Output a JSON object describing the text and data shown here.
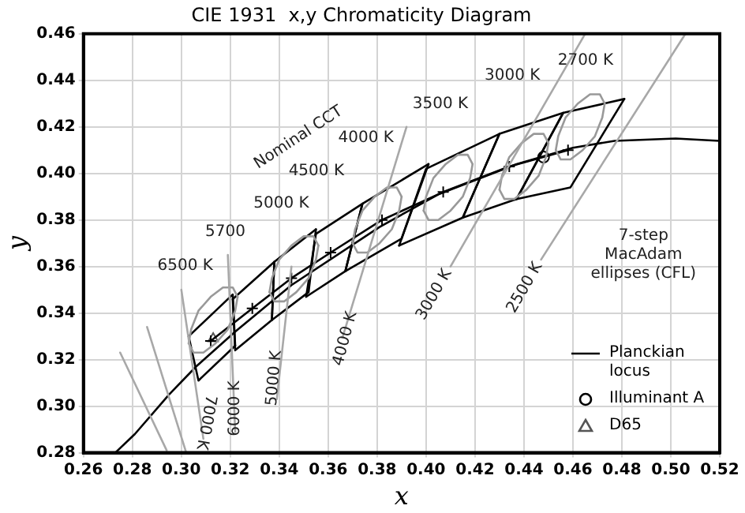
{
  "chart_data": {
    "type": "line",
    "title": "CIE 1931  x,y Chromaticity Diagram",
    "xlabel": "x",
    "ylabel": "y",
    "xlim": [
      0.26,
      0.52
    ],
    "ylim": [
      0.28,
      0.46
    ],
    "xticks": [
      0.26,
      0.28,
      {
        "value": 0.3,
        "label": "0.30"
      },
      0.32,
      0.34,
      0.36,
      0.38,
      {
        "value": 0.4,
        "label": "0.40"
      },
      0.42,
      0.44,
      0.46,
      0.48,
      {
        "value": 0.5,
        "label": "0.50"
      },
      0.52
    ],
    "yticks": [
      0.28,
      {
        "value": 0.3,
        "label": "0.30"
      },
      0.32,
      0.34,
      0.36,
      0.38,
      {
        "value": 0.4,
        "label": "0.40"
      },
      0.42,
      0.44,
      0.46
    ],
    "grid": true,
    "legend": "bottom right",
    "line_style": "solid",
    "series": [
      {
        "color": "#a8a8a8",
        "x": [
          0.275,
          0.294
        ],
        "values": [
          0.323,
          0.281
        ]
      },
      {
        "color": "#a8a8a8",
        "x": [
          0.286,
          0.302
        ],
        "values": [
          0.334,
          0.28
        ]
      },
      {
        "color": "#a8a8a8",
        "x": [
          0.3,
          0.309
        ],
        "values": [
          0.35,
          0.286
        ]
      },
      {
        "color": "#a8a8a8",
        "x": [
          0.319,
          0.322
        ],
        "values": [
          0.365,
          0.289
        ]
      },
      {
        "color": "#a8a8a8",
        "x": [
          0.339,
          0.345
        ],
        "values": [
          0.303,
          0.36
        ]
      },
      {
        "color": "#a8a8a8",
        "x": [
          0.366,
          0.392
        ],
        "values": [
          0.33,
          0.42
        ]
      },
      {
        "color": "#a8a8a8",
        "x": [
          0.41,
          0.465
        ],
        "values": [
          0.36,
          0.46
        ]
      },
      {
        "color": "#a8a8a8",
        "x": [
          0.447,
          0.506
        ],
        "values": [
          0.363,
          0.46
        ]
      },
      {
        "color": "#999999",
        "x": [
          0.303,
          0.304,
          0.307,
          0.312,
          0.317,
          0.321,
          0.323
        ],
        "values": [
          0.327,
          0.333,
          0.341,
          0.347,
          0.351,
          0.351,
          0.347
        ]
      },
      {
        "color": "#999999",
        "x": [
          0.303,
          0.305,
          0.309,
          0.314,
          0.319,
          0.322,
          0.323
        ],
        "values": [
          0.327,
          0.323,
          0.323,
          0.327,
          0.333,
          0.341,
          0.347
        ]
      },
      {
        "color": "#999999",
        "x": [
          0.336,
          0.337,
          0.34,
          0.345,
          0.35,
          0.354,
          0.356
        ],
        "values": [
          0.349,
          0.355,
          0.363,
          0.369,
          0.373,
          0.373,
          0.369
        ]
      },
      {
        "color": "#999999",
        "x": [
          0.336,
          0.338,
          0.342,
          0.347,
          0.352,
          0.355,
          0.356
        ],
        "values": [
          0.349,
          0.345,
          0.345,
          0.349,
          0.355,
          0.363,
          0.369
        ]
      },
      {
        "color": "#999999",
        "x": [
          0.37,
          0.371,
          0.374,
          0.379,
          0.384,
          0.388,
          0.39
        ],
        "values": [
          0.37,
          0.376,
          0.384,
          0.39,
          0.394,
          0.394,
          0.39
        ]
      },
      {
        "color": "#999999",
        "x": [
          0.37,
          0.372,
          0.376,
          0.381,
          0.386,
          0.389,
          0.39
        ],
        "values": [
          0.37,
          0.366,
          0.366,
          0.37,
          0.376,
          0.384,
          0.39
        ]
      },
      {
        "color": "#999999",
        "x": [
          0.399,
          0.4,
          0.403,
          0.408,
          0.413,
          0.417,
          0.419
        ],
        "values": [
          0.384,
          0.39,
          0.398,
          0.404,
          0.408,
          0.408,
          0.404
        ]
      },
      {
        "color": "#999999",
        "x": [
          0.399,
          0.401,
          0.405,
          0.41,
          0.415,
          0.418,
          0.419
        ],
        "values": [
          0.384,
          0.38,
          0.38,
          0.384,
          0.39,
          0.398,
          0.404
        ]
      },
      {
        "color": "#999999",
        "x": [
          0.43,
          0.431,
          0.434,
          0.439,
          0.444,
          0.448,
          0.45
        ],
        "values": [
          0.393,
          0.399,
          0.407,
          0.413,
          0.417,
          0.417,
          0.413
        ]
      },
      {
        "color": "#999999",
        "x": [
          0.43,
          0.432,
          0.436,
          0.441,
          0.446,
          0.449,
          0.45
        ],
        "values": [
          0.393,
          0.389,
          0.389,
          0.393,
          0.399,
          0.407,
          0.413
        ]
      },
      {
        "color": "#999999",
        "x": [
          0.453,
          0.454,
          0.457,
          0.462,
          0.467,
          0.471,
          0.473
        ],
        "values": [
          0.41,
          0.416,
          0.424,
          0.43,
          0.434,
          0.434,
          0.43
        ]
      },
      {
        "color": "#999999",
        "x": [
          0.453,
          0.455,
          0.459,
          0.464,
          0.469,
          0.472,
          0.473
        ],
        "values": [
          0.41,
          0.406,
          0.406,
          0.41,
          0.416,
          0.424,
          0.43
        ]
      },
      {
        "name": "Planckian locus",
        "color": "#000000",
        "x": [
          0.273,
          0.281,
          0.295,
          0.306,
          0.322,
          0.345,
          0.381,
          0.405,
          0.437,
          0.46,
          0.477,
          0.502,
          0.52
        ],
        "values": [
          0.28,
          0.288,
          0.305,
          0.317,
          0.332,
          0.352,
          0.377,
          0.391,
          0.404,
          0.411,
          0.414,
          0.415,
          0.414
        ]
      },
      {
        "color": "#000000",
        "x": [
          0.437,
          0.456,
          0.481
        ],
        "values": [
          0.389,
          0.426,
          0.432
        ]
      },
      {
        "color": "#000000",
        "x": [
          0.437,
          0.459,
          0.481
        ],
        "values": [
          0.389,
          0.394,
          0.432
        ]
      },
      {
        "color": "#000000",
        "x": [
          0.415,
          0.43,
          0.456
        ],
        "values": [
          0.381,
          0.417,
          0.426
        ]
      },
      {
        "color": "#000000",
        "x": [
          0.415,
          0.437,
          0.456
        ],
        "values": [
          0.381,
          0.389,
          0.426
        ]
      },
      {
        "color": "#000000",
        "x": [
          0.389,
          0.4,
          0.43
        ],
        "values": [
          0.369,
          0.402,
          0.417
        ]
      },
      {
        "color": "#000000",
        "x": [
          0.389,
          0.415,
          0.43
        ],
        "values": [
          0.369,
          0.381,
          0.417
        ]
      },
      {
        "color": "#000000",
        "x": [
          0.367,
          0.374,
          0.401
        ],
        "values": [
          0.358,
          0.387,
          0.404
        ]
      },
      {
        "color": "#000000",
        "x": [
          0.367,
          0.39,
          0.401
        ],
        "values": [
          0.358,
          0.372,
          0.404
        ]
      },
      {
        "color": "#000000",
        "x": [
          0.351,
          0.355,
          0.374
        ],
        "values": [
          0.347,
          0.374,
          0.387
        ]
      },
      {
        "color": "#000000",
        "x": [
          0.351,
          0.367,
          0.374
        ],
        "values": [
          0.347,
          0.358,
          0.387
        ]
      },
      {
        "color": "#000000",
        "x": [
          0.337,
          0.338,
          0.355
        ],
        "values": [
          0.337,
          0.362,
          0.376
        ]
      },
      {
        "color": "#000000",
        "x": [
          0.337,
          0.352,
          0.355
        ],
        "values": [
          0.337,
          0.349,
          0.376
        ]
      },
      {
        "color": "#000000",
        "x": [
          0.321,
          0.338
        ],
        "values": [
          0.346,
          0.362
        ]
      },
      {
        "color": "#000000",
        "x": [
          0.321,
          0.322,
          0.337,
          0.338
        ],
        "values": [
          0.346,
          0.324,
          0.337,
          0.362
        ]
      },
      {
        "color": "#000000",
        "x": [
          0.303,
          0.321,
          0.322
        ],
        "values": [
          0.33,
          0.348,
          0.326
        ]
      },
      {
        "color": "#000000",
        "x": [
          0.303,
          0.307,
          0.322
        ],
        "values": [
          0.33,
          0.311,
          0.326
        ]
      },
      {
        "color": "#000000",
        "marker": "cross",
        "x": [
          0.312,
          0.329,
          0.345,
          0.361,
          0.382,
          0.407,
          0.434,
          0.458
        ],
        "values": [
          0.328,
          0.342,
          0.355,
          0.366,
          0.38,
          0.392,
          0.403,
          0.41
        ]
      },
      {
        "name": "Illuminant A",
        "type": "scatter",
        "marker": "circle",
        "color": "#000000",
        "x": [
          0.448
        ],
        "values": [
          0.407
        ]
      },
      {
        "name": "D65",
        "type": "scatter",
        "marker": "triangle",
        "color": "#555555",
        "x": [
          0.313
        ],
        "values": [
          0.329
        ]
      }
    ],
    "annotations": [
      "6500 K",
      "5700",
      "5000 K",
      "4500 K",
      "4000 K",
      "Nominal CCT",
      "3500 K",
      "3000 K",
      "2700 K",
      {
        "text": "7000 K",
        "x": 0.31,
        "y": 0.293
      },
      {
        "text": "6000 K",
        "x": 0.322,
        "y": 0.299
      },
      {
        "text": "5000 K",
        "x": 0.338,
        "y": 0.312
      },
      {
        "text": "4000 K",
        "x": 0.367,
        "y": 0.329
      },
      {
        "text": "3000 K",
        "x": 0.41,
        "y": 0.36
      },
      {
        "text": "2500 K",
        "x": 0.447,
        "y": 0.363
      },
      "7-step MacAdam ellipses (CFL)"
    ]
  }
}
